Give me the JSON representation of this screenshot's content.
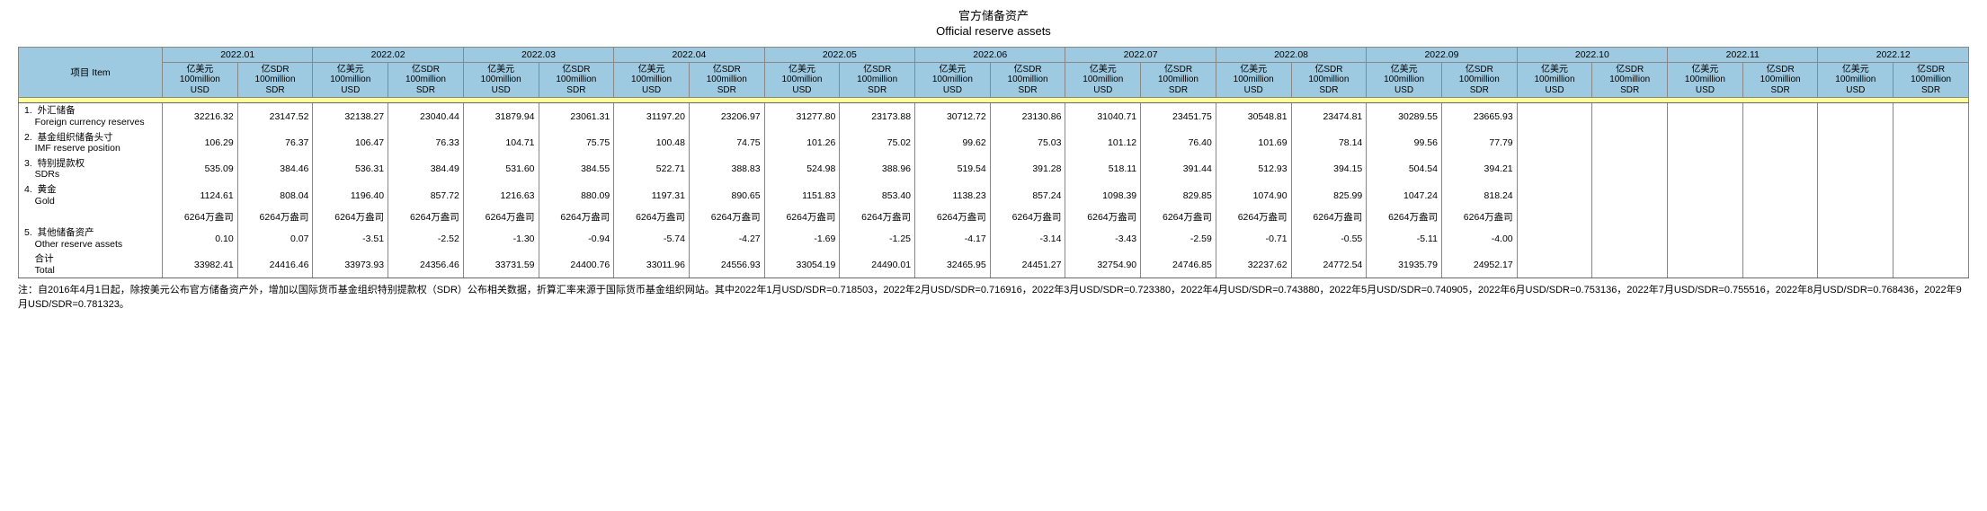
{
  "title_cn": "官方储备资产",
  "title_en": "Official reserve assets",
  "header": {
    "item_label": "项目  Item",
    "months": [
      "2022.01",
      "2022.02",
      "2022.03",
      "2022.04",
      "2022.05",
      "2022.06",
      "2022.07",
      "2022.08",
      "2022.09",
      "2022.10",
      "2022.11",
      "2022.12"
    ],
    "sub_usd": "亿美元\n100million\nUSD",
    "sub_sdr": "亿SDR\n100million\nSDR"
  },
  "rows": [
    {
      "label": "1.  外汇储备\n    Foreign currency reserves",
      "vals": [
        "32216.32",
        "23147.52",
        "32138.27",
        "23040.44",
        "31879.94",
        "23061.31",
        "31197.20",
        "23206.97",
        "31277.80",
        "23173.88",
        "30712.72",
        "23130.86",
        "31040.71",
        "23451.75",
        "30548.81",
        "23474.81",
        "30289.55",
        "23665.93",
        "",
        "",
        "",
        "",
        "",
        ""
      ]
    },
    {
      "label": "2.  基金组织储备头寸\n    IMF reserve position",
      "vals": [
        "106.29",
        "76.37",
        "106.47",
        "76.33",
        "104.71",
        "75.75",
        "100.48",
        "74.75",
        "101.26",
        "75.02",
        "99.62",
        "75.03",
        "101.12",
        "76.40",
        "101.69",
        "78.14",
        "99.56",
        "77.79",
        "",
        "",
        "",
        "",
        "",
        ""
      ]
    },
    {
      "label": "3.  特别提款权\n    SDRs",
      "vals": [
        "535.09",
        "384.46",
        "536.31",
        "384.49",
        "531.60",
        "384.55",
        "522.71",
        "388.83",
        "524.98",
        "388.96",
        "519.54",
        "391.28",
        "518.11",
        "391.44",
        "512.93",
        "394.15",
        "504.54",
        "394.21",
        "",
        "",
        "",
        "",
        "",
        ""
      ]
    },
    {
      "label": "4.  黄金\n    Gold",
      "vals": [
        "1124.61",
        "808.04",
        "1196.40",
        "857.72",
        "1216.63",
        "880.09",
        "1197.31",
        "890.65",
        "1151.83",
        "853.40",
        "1138.23",
        "857.24",
        "1098.39",
        "829.85",
        "1074.90",
        "825.99",
        "1047.24",
        "818.24",
        "",
        "",
        "",
        "",
        "",
        ""
      ]
    },
    {
      "label": "",
      "vals": [
        "6264万盎司",
        "6264万盎司",
        "6264万盎司",
        "6264万盎司",
        "6264万盎司",
        "6264万盎司",
        "6264万盎司",
        "6264万盎司",
        "6264万盎司",
        "6264万盎司",
        "6264万盎司",
        "6264万盎司",
        "6264万盎司",
        "6264万盎司",
        "6264万盎司",
        "6264万盎司",
        "6264万盎司",
        "6264万盎司",
        "",
        "",
        "",
        "",
        "",
        ""
      ]
    },
    {
      "label": "5.  其他储备资产\n    Other reserve assets",
      "vals": [
        "0.10",
        "0.07",
        "-3.51",
        "-2.52",
        "-1.30",
        "-0.94",
        "-5.74",
        "-4.27",
        "-1.69",
        "-1.25",
        "-4.17",
        "-3.14",
        "-3.43",
        "-2.59",
        "-0.71",
        "-0.55",
        "-5.11",
        "-4.00",
        "",
        "",
        "",
        "",
        "",
        ""
      ]
    },
    {
      "label": "    合计\n    Total",
      "vals": [
        "33982.41",
        "24416.46",
        "33973.93",
        "24356.46",
        "33731.59",
        "24400.76",
        "33011.96",
        "24556.93",
        "33054.19",
        "24490.01",
        "32465.95",
        "24451.27",
        "32754.90",
        "24746.85",
        "32237.62",
        "24772.54",
        "31935.79",
        "24952.17",
        "",
        "",
        "",
        "",
        "",
        ""
      ]
    }
  ],
  "footnote": "注：自2016年4月1日起，除按美元公布官方储备资产外，增加以国际货币基金组织特别提款权（SDR）公布相关数据，折算汇率来源于国际货币基金组织网站。其中2022年1月USD/SDR=0.718503，2022年2月USD/SDR=0.716916，2022年3月USD/SDR=0.723380，2022年4月USD/SDR=0.743880，2022年5月USD/SDR=0.740905，2022年6月USD/SDR=0.753136，2022年7月USD/SDR=0.755516，2022年8月USD/SDR=0.768436，2022年9月USD/SDR=0.781323。"
}
